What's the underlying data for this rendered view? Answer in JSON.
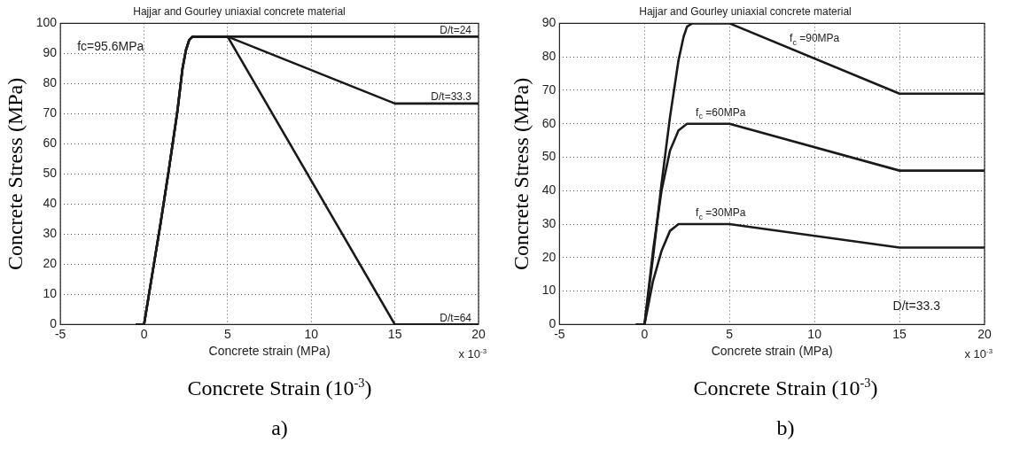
{
  "chart_data": [
    {
      "type": "line",
      "title": "Hajjar and Gourley uniaxial concrete material",
      "xlabel": "Concrete strain (MPa)",
      "ylabel": "Concrete Stress (MPa)",
      "xlim": [
        -5,
        20
      ],
      "xticks": [
        -5,
        0,
        5,
        10,
        15,
        20
      ],
      "ylim": [
        0,
        100
      ],
      "yticks": [
        0,
        10,
        20,
        30,
        40,
        50,
        60,
        70,
        80,
        90,
        100
      ],
      "grid": true,
      "marker": "none",
      "line_style": "solid",
      "series": [
        {
          "name": "D/t=24",
          "color": "#1a1a1a",
          "x": [
            -0.5,
            0,
            0.5,
            1,
            1.5,
            2,
            2.3,
            2.5,
            2.7,
            2.9,
            5,
            20
          ],
          "values": [
            0,
            0,
            17,
            34,
            52,
            71,
            85,
            91,
            94.5,
            95.6,
            95.6,
            95.6
          ]
        },
        {
          "name": "D/t=33.3",
          "color": "#1a1a1a",
          "x": [
            -0.5,
            0,
            0.5,
            1,
            1.5,
            2,
            2.3,
            2.5,
            2.7,
            2.9,
            5,
            15,
            20
          ],
          "values": [
            0,
            0,
            17,
            34,
            52,
            71,
            85,
            91,
            94.5,
            95.6,
            95.6,
            73.4,
            73.4
          ]
        },
        {
          "name": "D/t=64",
          "color": "#1a1a1a",
          "x": [
            -0.5,
            0,
            0.5,
            1,
            1.5,
            2,
            2.3,
            2.5,
            2.7,
            2.9,
            5,
            15,
            20
          ],
          "values": [
            0,
            0,
            17,
            34,
            52,
            71,
            85,
            91,
            94.5,
            95.6,
            95.6,
            0,
            0
          ]
        }
      ],
      "annotations": [
        "fc=95.6MPa",
        "x 10$^{-3}$",
        "Concrete Strain (10$^{-3}$)",
        "a)"
      ]
    },
    {
      "type": "line",
      "title": "Hajjar and Gourley uniaxial concrete material",
      "xlabel": "Concrete strain (MPa)",
      "ylabel": "Concrete Stress (MPa)",
      "xlim": [
        -5,
        20
      ],
      "xticks": [
        -5,
        0,
        5,
        10,
        15,
        20
      ],
      "ylim": [
        0,
        90
      ],
      "yticks": [
        0,
        10,
        20,
        30,
        40,
        50,
        60,
        70,
        80,
        90
      ],
      "grid": true,
      "marker": "none",
      "line_style": "solid",
      "series": [
        {
          "name": "f$_{c}$ =90MPa",
          "color": "#1a1a1a",
          "x": [
            -0.5,
            0,
            0.5,
            1,
            1.5,
            2,
            2.3,
            2.5,
            2.8,
            3,
            5,
            15,
            20
          ],
          "values": [
            0,
            0,
            20,
            42,
            62,
            79,
            86,
            89,
            90,
            90,
            90,
            69,
            69
          ]
        },
        {
          "name": "f$_{c}$ =60MPa",
          "color": "#1a1a1a",
          "x": [
            -0.5,
            0,
            0.5,
            1,
            1.5,
            2,
            2.5,
            5,
            15,
            20
          ],
          "values": [
            0,
            0,
            22,
            40,
            52,
            58,
            60,
            60,
            46,
            46
          ]
        },
        {
          "name": "f$_{c}$ =30MPa",
          "color": "#1a1a1a",
          "x": [
            -0.5,
            0,
            0.5,
            1,
            1.5,
            2,
            5,
            15,
            20
          ],
          "values": [
            0,
            0,
            13,
            22,
            28,
            30,
            30,
            23,
            23
          ]
        }
      ],
      "annotations": [
        "D/t=33.3",
        "x 10$^{-3}$",
        "Concrete Strain (10$^{-3}$)",
        "b)"
      ]
    }
  ]
}
